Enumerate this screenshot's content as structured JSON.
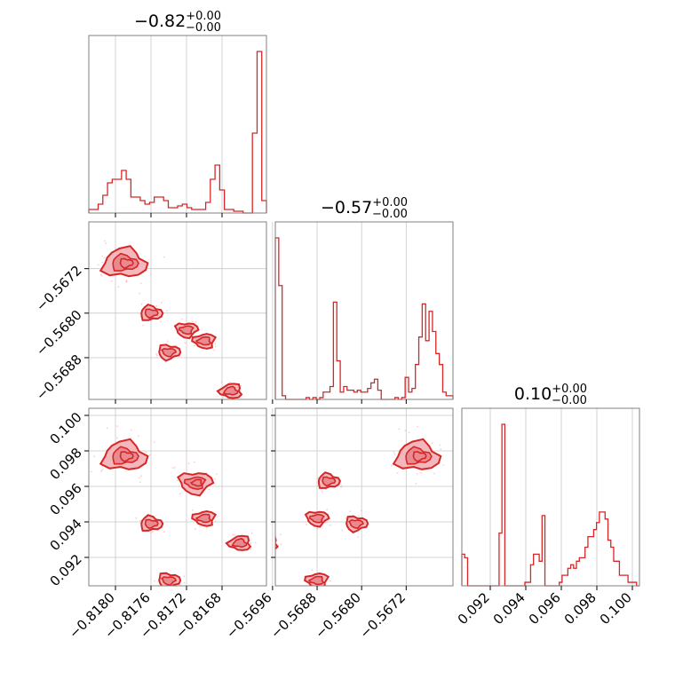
{
  "chart_data": {
    "type": "corner",
    "color": "#d62728",
    "parameters": [
      {
        "id": "p1",
        "range": [
          -0.8183,
          -0.8163
        ],
        "ticks": [
          -0.818,
          -0.8176,
          -0.8172,
          -0.8168
        ],
        "tick_labels": [
          "−0.8180",
          "−0.8176",
          "−0.8172",
          "−0.8168"
        ],
        "title": {
          "main": "−0.82",
          "sup": "+0.00",
          "sub": "−0.00"
        }
      },
      {
        "id": "p2",
        "range": [
          -0.56955,
          -0.56636
        ],
        "ticks": [
          -0.5672,
          -0.568,
          -0.5688,
          -0.5696
        ],
        "tick_labels": [
          "−0.5672",
          "−0.5680",
          "−0.5688",
          "−0.5696"
        ],
        "title": {
          "main": "−0.57",
          "sup": "+0.00",
          "sub": "−0.00"
        }
      },
      {
        "id": "p3",
        "range": [
          0.0904,
          0.1004
        ],
        "ticks": [
          0.092,
          0.094,
          0.096,
          0.098,
          0.1
        ],
        "tick_labels": [
          "0.092",
          "0.094",
          "0.096",
          "0.098",
          "0.100"
        ],
        "title": {
          "main": "0.10",
          "sup": "+0.00",
          "sub": "−0.00"
        }
      }
    ],
    "histograms": {
      "p1": [
        2,
        2,
        5,
        10,
        17,
        19,
        19,
        24,
        19,
        9,
        9,
        7,
        5,
        6,
        9,
        9,
        7,
        3,
        3,
        4,
        5,
        3,
        2,
        2,
        2,
        6,
        19,
        27,
        13,
        2,
        2,
        1,
        1,
        0,
        0,
        45,
        91,
        7
      ],
      "p2": [
        88,
        62,
        2,
        0,
        0,
        0,
        0,
        0,
        0,
        1,
        0,
        1,
        0,
        1,
        4,
        4,
        7,
        53,
        21,
        4,
        7,
        5,
        5,
        4,
        5,
        4,
        4,
        6,
        9,
        11,
        5,
        0,
        0,
        0,
        0,
        1,
        0,
        1,
        12,
        4,
        6,
        19,
        34,
        52,
        32,
        48,
        37,
        25,
        19,
        4,
        2,
        2
      ],
      "p3": [
        9,
        8,
        0,
        0,
        0,
        0,
        0,
        0,
        0,
        0,
        0,
        0,
        0,
        15,
        46,
        0,
        0,
        0,
        0,
        0,
        0,
        0,
        1,
        1,
        6,
        9,
        9,
        7,
        20,
        0,
        0,
        0,
        0,
        0,
        1,
        3,
        3,
        5,
        6,
        5,
        7,
        8,
        8,
        11,
        14,
        14,
        16,
        18,
        21,
        21,
        19,
        13,
        11,
        7,
        7,
        3,
        3,
        3,
        1,
        1,
        1,
        0
      ]
    },
    "scatter_clusters": {
      "p2_vs_p1": [
        {
          "x": -0.8179,
          "y": -0.5671,
          "weight": 3
        },
        {
          "x": -0.8176,
          "y": -0.568,
          "weight": 1
        },
        {
          "x": -0.8174,
          "y": -0.5687,
          "weight": 1
        },
        {
          "x": -0.8172,
          "y": -0.5683,
          "weight": 1
        },
        {
          "x": -0.817,
          "y": -0.5685,
          "weight": 1
        },
        {
          "x": -0.8167,
          "y": -0.5694,
          "weight": 1
        }
      ],
      "p3_vs_p1": [
        {
          "x": -0.8179,
          "y": 0.0977,
          "weight": 3
        },
        {
          "x": -0.8176,
          "y": 0.0939,
          "weight": 1
        },
        {
          "x": -0.8174,
          "y": 0.0907,
          "weight": 1
        },
        {
          "x": -0.8171,
          "y": 0.0962,
          "weight": 2
        },
        {
          "x": -0.817,
          "y": 0.0942,
          "weight": 1
        },
        {
          "x": -0.8166,
          "y": 0.0928,
          "weight": 1
        }
      ],
      "p3_vs_p2": [
        {
          "x": -0.567,
          "y": 0.0977,
          "weight": 3
        },
        {
          "x": -0.5686,
          "y": 0.0963,
          "weight": 1
        },
        {
          "x": -0.5681,
          "y": 0.0939,
          "weight": 1
        },
        {
          "x": -0.5688,
          "y": 0.0942,
          "weight": 1
        },
        {
          "x": -0.5688,
          "y": 0.0907,
          "weight": 1
        },
        {
          "x": -0.5697,
          "y": 0.0928,
          "weight": 1
        }
      ]
    },
    "grid": true,
    "legend": "none"
  }
}
